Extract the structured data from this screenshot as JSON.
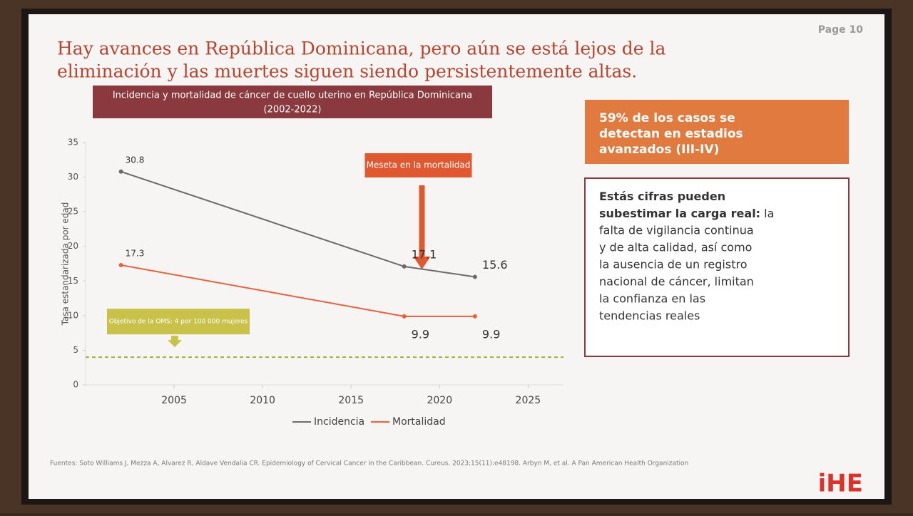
{
  "page_label": "Page 10",
  "slide_title": [
    "Hay avances en República Dominicana, pero aún se está lejos de la",
    "eliminación y las muertes siguen siendo persistentemente altas."
  ],
  "chart_data": {
    "type": "line",
    "subtitle": [
      "Incidencia y mortalidad de cáncer de cuello uterino en República Dominicana",
      "(2002-2022)"
    ],
    "y_label": "Tasa estandarizada por edad",
    "x": [
      2002,
      2018,
      2022
    ],
    "series": [
      {
        "name": "Incidencia",
        "color": "#6b6b6b",
        "values": [
          30.8,
          17.1,
          15.6
        ]
      },
      {
        "name": "Mortalidad",
        "color": "#e8603c",
        "values": [
          17.3,
          9.9,
          9.9
        ]
      }
    ],
    "xlim": [
      2000,
      2027
    ],
    "xticks": [
      2005,
      2010,
      2015,
      2020,
      2025
    ],
    "ylim": [
      0,
      35
    ],
    "yticks": [
      0,
      5,
      10,
      15,
      20,
      25,
      30,
      35
    ],
    "target": {
      "value": 4,
      "label": "Objetivo de la OMS: 4 por 100 000 mujeres",
      "color": "#9bb53c"
    },
    "annotation": "Meseta en la mortalidad",
    "legend": "bottom"
  },
  "box_stat": [
    "59% de los casos se",
    "detectan en estadios",
    "avanzados (III-IV)"
  ],
  "box_note": {
    "bold": [
      "Estás cifras pueden",
      "subestimar la carga real:"
    ],
    "lines": [
      "la",
      "falta de vigilancia continua",
      "y de alta calidad, así como",
      "la ausencia de un registro",
      "nacional de cáncer, limitan",
      "la confianza en las",
      "tendencias reales"
    ]
  },
  "footnote": "Fuentes: Soto Williams J, Mezza A, Alvarez R, Aldave Vendalia CR. Epidemiology of Cervical Cancer in the Caribbean. Cureus. 2023;15(11):e48198. Arbyn M, et al. A Pan American Health Organization",
  "logo": "iHE"
}
